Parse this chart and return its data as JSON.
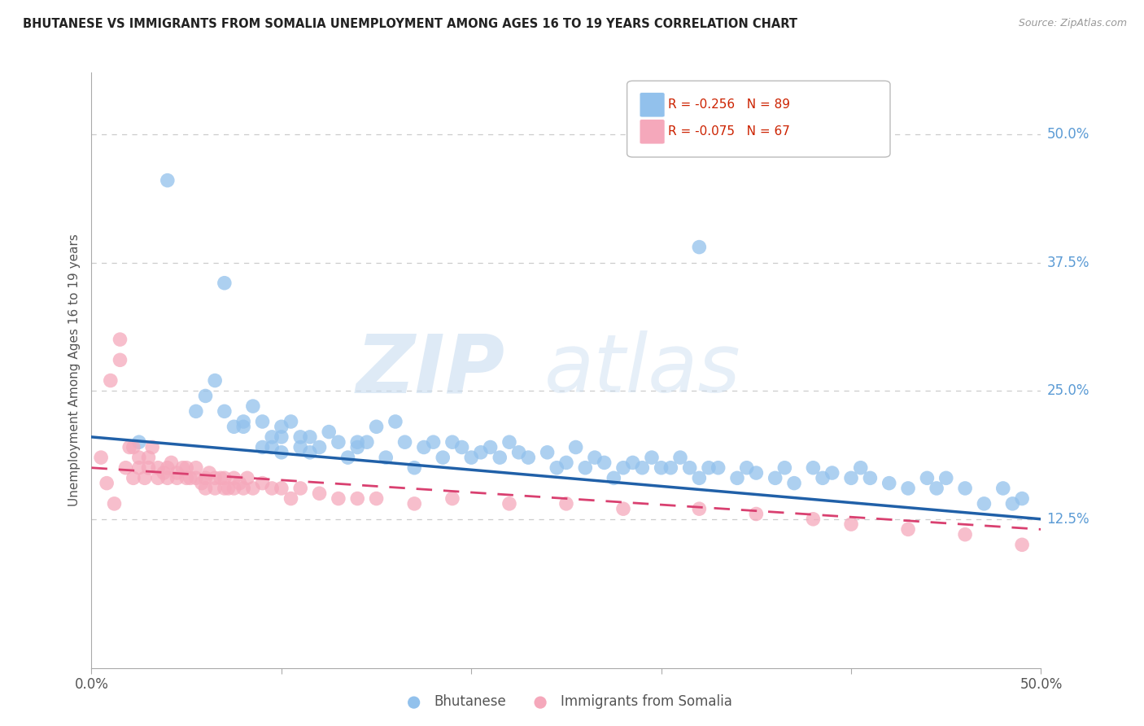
{
  "title": "BHUTANESE VS IMMIGRANTS FROM SOMALIA UNEMPLOYMENT AMONG AGES 16 TO 19 YEARS CORRELATION CHART",
  "source": "Source: ZipAtlas.com",
  "ylabel": "Unemployment Among Ages 16 to 19 years",
  "legend_label1": "Bhutanese",
  "legend_label2": "Immigrants from Somalia",
  "legend_r1": "R = -0.256",
  "legend_n1": "N = 89",
  "legend_r2": "R = -0.075",
  "legend_n2": "N = 67",
  "blue_color": "#92C1EC",
  "pink_color": "#F5A8BB",
  "blue_line_color": "#2060A8",
  "pink_line_color": "#D94070",
  "watermark_zip": "ZIP",
  "watermark_atlas": "atlas",
  "grid_color": "#CCCCCC",
  "right_tick_color": "#5B9BD5",
  "xlim": [
    0.0,
    0.5
  ],
  "ylim": [
    -0.02,
    0.56
  ],
  "blue_line_start": 0.205,
  "blue_line_end": 0.125,
  "pink_line_start": 0.175,
  "pink_line_end": 0.115,
  "bhutanese_x": [
    0.025,
    0.04,
    0.055,
    0.06,
    0.065,
    0.07,
    0.075,
    0.08,
    0.08,
    0.085,
    0.09,
    0.09,
    0.095,
    0.095,
    0.1,
    0.1,
    0.1,
    0.105,
    0.11,
    0.11,
    0.115,
    0.115,
    0.12,
    0.125,
    0.13,
    0.135,
    0.14,
    0.14,
    0.145,
    0.15,
    0.155,
    0.16,
    0.165,
    0.17,
    0.175,
    0.18,
    0.185,
    0.19,
    0.195,
    0.2,
    0.205,
    0.21,
    0.215,
    0.22,
    0.225,
    0.23,
    0.24,
    0.245,
    0.25,
    0.255,
    0.26,
    0.265,
    0.27,
    0.275,
    0.28,
    0.285,
    0.29,
    0.295,
    0.3,
    0.305,
    0.31,
    0.315,
    0.32,
    0.325,
    0.33,
    0.34,
    0.345,
    0.35,
    0.36,
    0.365,
    0.37,
    0.38,
    0.385,
    0.39,
    0.4,
    0.405,
    0.41,
    0.42,
    0.43,
    0.44,
    0.445,
    0.45,
    0.46,
    0.47,
    0.48,
    0.485,
    0.49,
    0.07,
    0.32
  ],
  "bhutanese_y": [
    0.2,
    0.455,
    0.23,
    0.245,
    0.26,
    0.23,
    0.215,
    0.215,
    0.22,
    0.235,
    0.22,
    0.195,
    0.195,
    0.205,
    0.215,
    0.205,
    0.19,
    0.22,
    0.205,
    0.195,
    0.205,
    0.19,
    0.195,
    0.21,
    0.2,
    0.185,
    0.2,
    0.195,
    0.2,
    0.215,
    0.185,
    0.22,
    0.2,
    0.175,
    0.195,
    0.2,
    0.185,
    0.2,
    0.195,
    0.185,
    0.19,
    0.195,
    0.185,
    0.2,
    0.19,
    0.185,
    0.19,
    0.175,
    0.18,
    0.195,
    0.175,
    0.185,
    0.18,
    0.165,
    0.175,
    0.18,
    0.175,
    0.185,
    0.175,
    0.175,
    0.185,
    0.175,
    0.165,
    0.175,
    0.175,
    0.165,
    0.175,
    0.17,
    0.165,
    0.175,
    0.16,
    0.175,
    0.165,
    0.17,
    0.165,
    0.175,
    0.165,
    0.16,
    0.155,
    0.165,
    0.155,
    0.165,
    0.155,
    0.14,
    0.155,
    0.14,
    0.145,
    0.355,
    0.39
  ],
  "somalia_x": [
    0.005,
    0.008,
    0.01,
    0.012,
    0.015,
    0.015,
    0.018,
    0.02,
    0.022,
    0.022,
    0.025,
    0.025,
    0.028,
    0.03,
    0.03,
    0.032,
    0.035,
    0.035,
    0.038,
    0.04,
    0.04,
    0.042,
    0.045,
    0.045,
    0.048,
    0.05,
    0.05,
    0.052,
    0.055,
    0.055,
    0.058,
    0.06,
    0.06,
    0.062,
    0.065,
    0.065,
    0.068,
    0.07,
    0.07,
    0.072,
    0.075,
    0.075,
    0.078,
    0.08,
    0.082,
    0.085,
    0.09,
    0.095,
    0.1,
    0.105,
    0.11,
    0.12,
    0.13,
    0.14,
    0.15,
    0.17,
    0.19,
    0.22,
    0.25,
    0.28,
    0.32,
    0.35,
    0.38,
    0.4,
    0.43,
    0.46,
    0.49
  ],
  "somalia_y": [
    0.185,
    0.16,
    0.26,
    0.14,
    0.28,
    0.3,
    0.175,
    0.195,
    0.165,
    0.195,
    0.185,
    0.175,
    0.165,
    0.185,
    0.175,
    0.195,
    0.175,
    0.165,
    0.17,
    0.175,
    0.165,
    0.18,
    0.17,
    0.165,
    0.175,
    0.165,
    0.175,
    0.165,
    0.175,
    0.165,
    0.16,
    0.165,
    0.155,
    0.17,
    0.165,
    0.155,
    0.165,
    0.155,
    0.165,
    0.155,
    0.165,
    0.155,
    0.16,
    0.155,
    0.165,
    0.155,
    0.16,
    0.155,
    0.155,
    0.145,
    0.155,
    0.15,
    0.145,
    0.145,
    0.145,
    0.14,
    0.145,
    0.14,
    0.14,
    0.135,
    0.135,
    0.13,
    0.125,
    0.12,
    0.115,
    0.11,
    0.1
  ]
}
